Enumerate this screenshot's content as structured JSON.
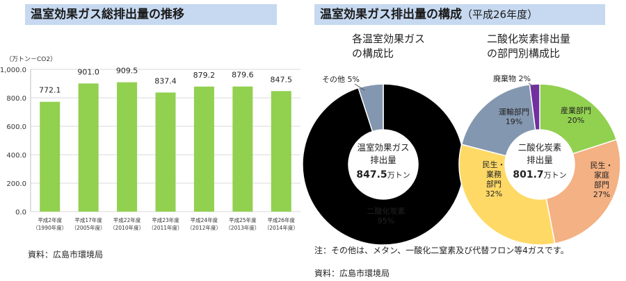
{
  "titles": {
    "left": "温室効果ガス総排出量の推移",
    "right_main": "温室効果ガス排出量の構成",
    "right_sub": "（平成26年度）"
  },
  "source_left": "資料：広島市環境局",
  "note_right": "注：その他は、メタン、一酸化二窒素及び代替フロン等4ガスです。",
  "source_right": "資料：広島市環境局",
  "colors": {
    "bar": "#92d050",
    "title_bg": "#c6d9f0",
    "co2_main": "#ffc000",
    "other": "#8497b0",
    "industry": "#92d050",
    "household": "#f4b183",
    "business": "#ffd966",
    "transport": "#8497b0",
    "waste": "#7030a0"
  },
  "chart_data": [
    {
      "type": "bar",
      "title": "温室効果ガス総排出量の推移",
      "unit_label": "（万トン－CO2）",
      "categories": [
        [
          "平成2年度",
          "（1990年度）"
        ],
        [
          "平成17年度",
          "（2005年度）"
        ],
        [
          "平成22年度",
          "（2010年度）"
        ],
        [
          "平成23年度",
          "（2011年度）"
        ],
        [
          "平成24年度",
          "（2012年度）"
        ],
        [
          "平成25年度",
          "（2013年度）"
        ],
        [
          "平成26年度",
          "（2014年度）"
        ]
      ],
      "values": [
        772.1,
        901.0,
        909.5,
        837.4,
        879.2,
        879.6,
        847.5
      ],
      "value_labels": [
        "772.1",
        "901.0",
        "909.5",
        "837.4",
        "879.2",
        "879.6",
        "847.5"
      ],
      "ylim": [
        0,
        1000
      ],
      "yticks": [
        0,
        200,
        400,
        600,
        800,
        1000
      ],
      "ytick_labels": [
        "0.0",
        "200.0",
        "400.0",
        "600.0",
        "800.0",
        "1,000.0"
      ],
      "grid": true
    },
    {
      "type": "pie",
      "title": [
        "各温室効果ガス",
        "の構成比"
      ],
      "donut": true,
      "center_text": [
        "温室効果ガス",
        "排出量",
        "847.5",
        "万トン"
      ],
      "slices": [
        {
          "key": "co2",
          "label": [
            "二酸化炭素",
            "95%"
          ],
          "value": 95,
          "outside_label": false
        },
        {
          "key": "other",
          "label": [
            "その他 5%"
          ],
          "value": 5,
          "outside_label": true
        }
      ]
    },
    {
      "type": "pie",
      "title": [
        "二酸化炭素排出量",
        "の部門別構成比"
      ],
      "donut": true,
      "center_text": [
        "二酸化炭素",
        "排出量",
        "801.7",
        "万トン"
      ],
      "slices": [
        {
          "key": "industry",
          "label": [
            "産業部門",
            "20%"
          ],
          "value": 20,
          "outside_label": false
        },
        {
          "key": "household",
          "label": [
            "民生・",
            "家庭",
            "部門",
            "27%"
          ],
          "value": 27,
          "outside_label": false
        },
        {
          "key": "business",
          "label": [
            "民生・",
            "業務",
            "部門",
            "32%"
          ],
          "value": 32,
          "outside_label": false
        },
        {
          "key": "transport",
          "label": [
            "運輸部門",
            "19%"
          ],
          "value": 19,
          "outside_label": false
        },
        {
          "key": "waste",
          "label": [
            "廃棄物 2%"
          ],
          "value": 2,
          "outside_label": true
        }
      ]
    }
  ]
}
